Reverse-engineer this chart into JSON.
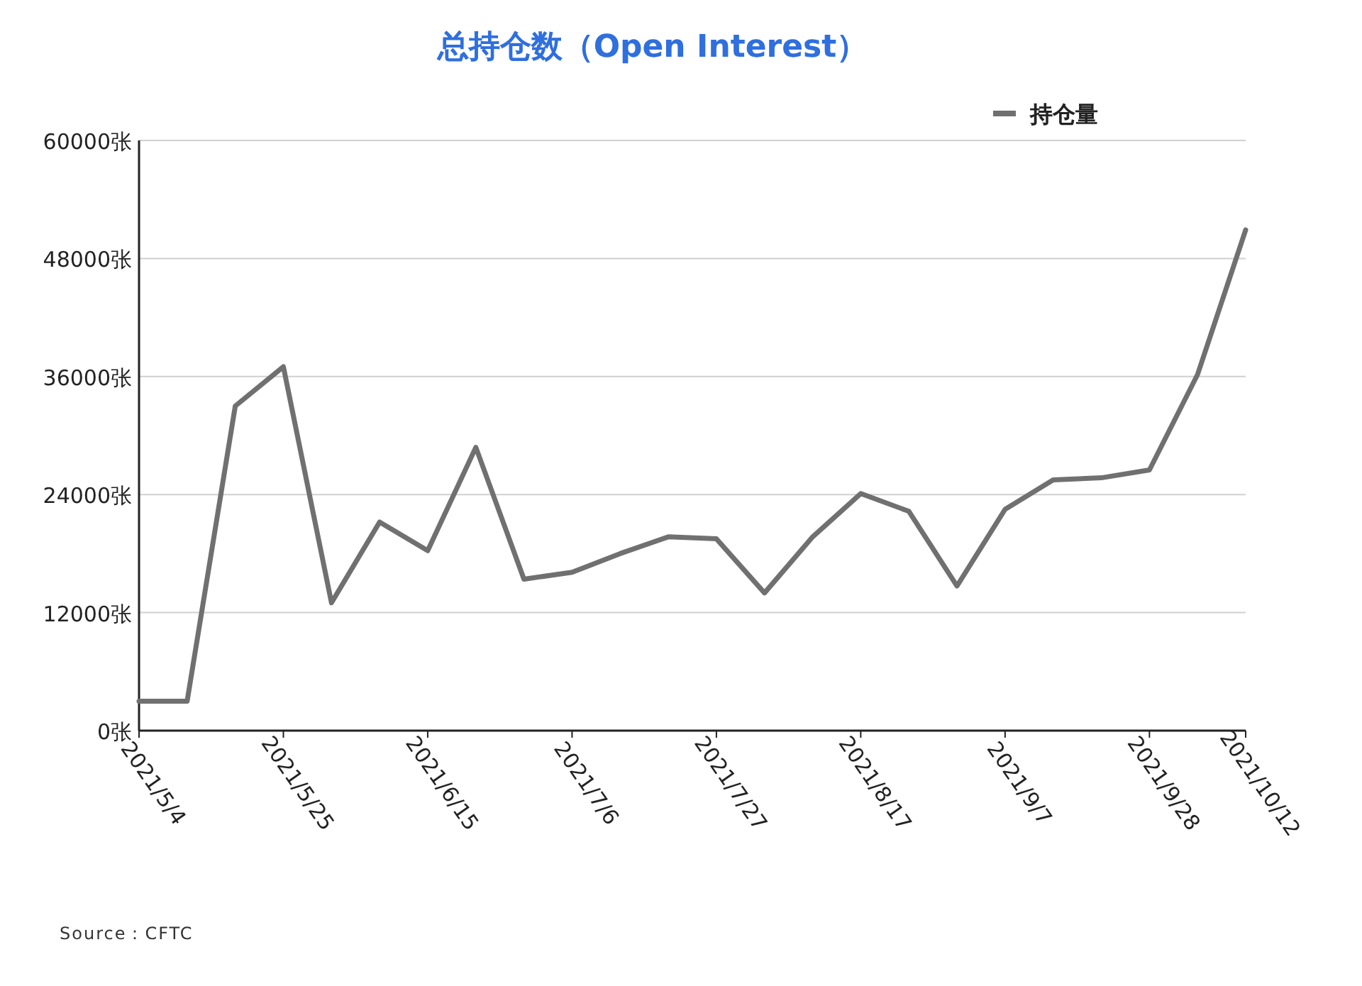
{
  "chart_data": {
    "type": "line",
    "title": "总持仓数（Open Interest）",
    "x": [
      "2021-05-04",
      "2021-05-11",
      "2021-05-18",
      "2021-05-25",
      "2021-06-01",
      "2021-06-08",
      "2021-06-15",
      "2021-06-22",
      "2021-06-29",
      "2021-07-06",
      "2021-07-13",
      "2021-07-20",
      "2021-07-27",
      "2021-08-03",
      "2021-08-10",
      "2021-08-17",
      "2021-08-24",
      "2021-08-31",
      "2021-09-07",
      "2021-09-14",
      "2021-09-21",
      "2021-09-28",
      "2021-10-05",
      "2021-10-12"
    ],
    "series": [
      {
        "name": "持仓量",
        "color": "#707070",
        "values": [
          3000,
          3000,
          33000,
          37000,
          13000,
          21200,
          18300,
          28800,
          15400,
          16100,
          18000,
          19700,
          19500,
          14000,
          19700,
          24100,
          22300,
          14700,
          22500,
          25500,
          25700,
          26500,
          36200,
          50900
        ]
      }
    ],
    "xlim": [
      "2021-05-04",
      "2021-10-12"
    ],
    "xticks": [
      {
        "value": "2021-05-04",
        "label": "2021/5/4"
      },
      {
        "value": "2021-05-25",
        "label": "2021/5/25"
      },
      {
        "value": "2021-06-15",
        "label": "2021/6/15"
      },
      {
        "value": "2021-07-06",
        "label": "2021/7/6"
      },
      {
        "value": "2021-07-27",
        "label": "2021/7/27"
      },
      {
        "value": "2021-08-17",
        "label": "2021/8/17"
      },
      {
        "value": "2021-09-07",
        "label": "2021/9/7"
      },
      {
        "value": "2021-09-28",
        "label": "2021/9/28"
      },
      {
        "value": "2021-10-12",
        "label": "2021/10/12"
      }
    ],
    "ylim": [
      0,
      60000
    ],
    "yticks": [
      {
        "value": 0,
        "label": "0张"
      },
      {
        "value": 12000,
        "label": "12000张"
      },
      {
        "value": 24000,
        "label": "24000张"
      },
      {
        "value": 36000,
        "label": "36000张"
      },
      {
        "value": 48000,
        "label": "48000张"
      },
      {
        "value": 60000,
        "label": "60000张"
      }
    ],
    "grid": "y",
    "legend": "top right",
    "annotations": [
      "Source：CFTC"
    ]
  }
}
